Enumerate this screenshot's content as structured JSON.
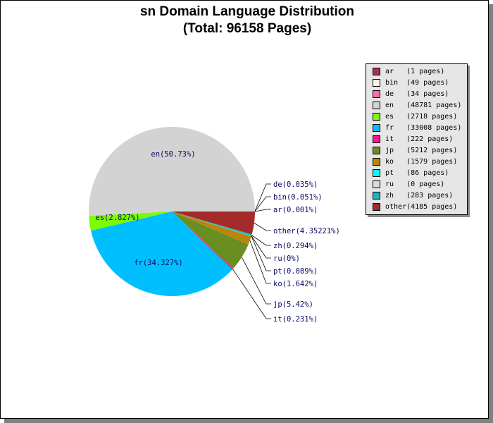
{
  "chart_data": {
    "type": "pie",
    "title_lines": [
      "sn Domain Language Distribution",
      "(Total: 96158 Pages)"
    ],
    "slices": [
      {
        "name": "ar",
        "pages": 1,
        "legend": "ar   (1 pages)",
        "label": "ar(0.001%)",
        "color": "#a3315f"
      },
      {
        "name": "bin",
        "pages": 49,
        "legend": "bin  (49 pages)",
        "label": "bin(0.051%)",
        "color": "#fdf0df"
      },
      {
        "name": "de",
        "pages": 34,
        "legend": "de   (34 pages)",
        "label": "de(0.035%)",
        "color": "#ff6ab0"
      },
      {
        "name": "en",
        "pages": 48781,
        "legend": "en   (48781 pages)",
        "label": "en(50.73%)",
        "color": "#d3d3d3"
      },
      {
        "name": "es",
        "pages": 2718,
        "legend": "es   (2718 pages)",
        "label": "es(2.827%)",
        "color": "#7cfc00"
      },
      {
        "name": "fr",
        "pages": 33008,
        "legend": "fr   (33008 pages)",
        "label": "fr(34.327%)",
        "color": "#00bfff"
      },
      {
        "name": "it",
        "pages": 222,
        "legend": "it   (222 pages)",
        "label": "it(0.231%)",
        "color": "#ff1493"
      },
      {
        "name": "jp",
        "pages": 5212,
        "legend": "jp   (5212 pages)",
        "label": "jp(5.42%)",
        "color": "#6b8e23"
      },
      {
        "name": "ko",
        "pages": 1579,
        "legend": "ko   (1579 pages)",
        "label": "ko(1.642%)",
        "color": "#b8860b"
      },
      {
        "name": "pt",
        "pages": 86,
        "legend": "pt   (86 pages)",
        "label": "pt(0.089%)",
        "color": "#00ffff"
      },
      {
        "name": "ru",
        "pages": 0,
        "legend": "ru   (0 pages)",
        "label": "ru(0%)",
        "color": "#dcdcdc"
      },
      {
        "name": "zh",
        "pages": 283,
        "legend": "zh   (283 pages)",
        "label": "zh(0.294%)",
        "color": "#20b2c0"
      },
      {
        "name": "other",
        "pages": 4185,
        "legend": "other(4185 pages)",
        "label": "other(4.35221%)",
        "color": "#a52a2a"
      }
    ]
  }
}
